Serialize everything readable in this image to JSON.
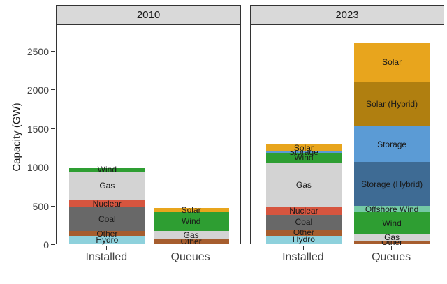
{
  "chart_data": {
    "type": "bar",
    "stacked": true,
    "title": "",
    "xlabel": "",
    "ylabel": "Capacity (GW)",
    "yticks": [
      0,
      500,
      1000,
      1500,
      2000,
      2500
    ],
    "ylim": [
      0,
      2820
    ],
    "grid": false,
    "legend": "none",
    "facets": [
      {
        "title": "2010",
        "bars": [
          {
            "category": "Installed",
            "total": 972,
            "total_label": "972",
            "segments": [
              {
                "name": "Hydro",
                "value": 98
              },
              {
                "name": "Other",
                "value": 64
              },
              {
                "name": "Coal",
                "value": 305
              },
              {
                "name": "Nuclear",
                "value": 100
              },
              {
                "name": "Gas",
                "value": 365
              },
              {
                "name": "Wind",
                "value": 40
              }
            ]
          },
          {
            "category": "Queues",
            "total": 462,
            "total_label": "462",
            "segments": [
              {
                "name": "Other",
                "value": 56
              },
              {
                "name": "Gas",
                "value": 102
              },
              {
                "name": "Wind",
                "value": 252
              },
              {
                "name": "Solar",
                "value": 52
              }
            ]
          }
        ]
      },
      {
        "title": "2023",
        "bars": [
          {
            "category": "Installed",
            "total": 1279,
            "total_label": "1,279",
            "segments": [
              {
                "name": "Hydro",
                "value": 100
              },
              {
                "name": "Other",
                "value": 84
              },
              {
                "name": "Coal",
                "value": 190
              },
              {
                "name": "Nuclear",
                "value": 100
              },
              {
                "name": "Gas",
                "value": 565
              },
              {
                "name": "Wind",
                "value": 130
              },
              {
                "name": "Storage",
                "value": 20
              },
              {
                "name": "Solar",
                "value": 90
              }
            ]
          },
          {
            "category": "Queues",
            "total": 2598,
            "total_label": "2,598",
            "segments": [
              {
                "name": "Other",
                "value": 39
              },
              {
                "name": "Gas",
                "value": 79
              },
              {
                "name": "Wind",
                "value": 289
              },
              {
                "name": "Offshore Wind",
                "value": 77
              },
              {
                "name": "Storage (Hybrid)",
                "value": 569
              },
              {
                "name": "Storage",
                "value": 459
              },
              {
                "name": "Solar (Hybrid)",
                "value": 575
              },
              {
                "name": "Solar",
                "value": 511
              }
            ]
          }
        ]
      }
    ],
    "colors": {
      "Solar": "#E8A51D",
      "Solar (Hybrid)": "#B07F10",
      "Storage": "#5B9BD5",
      "Storage (Hybrid)": "#3E6B94",
      "Offshore Wind": "#74C9A5",
      "Wind": "#2E9E32",
      "Gas": "#D3D3D3",
      "Nuclear": "#D6553F",
      "Coal": "#686868",
      "Other": "#A65D2E",
      "Hydro": "#8ED1DC"
    },
    "style": {
      "strip_background": "#D9D9D9",
      "panel_border": "#333333",
      "text_color": "#1a1a1a",
      "axis_text_color": "#404040",
      "background": "#ffffff"
    }
  }
}
